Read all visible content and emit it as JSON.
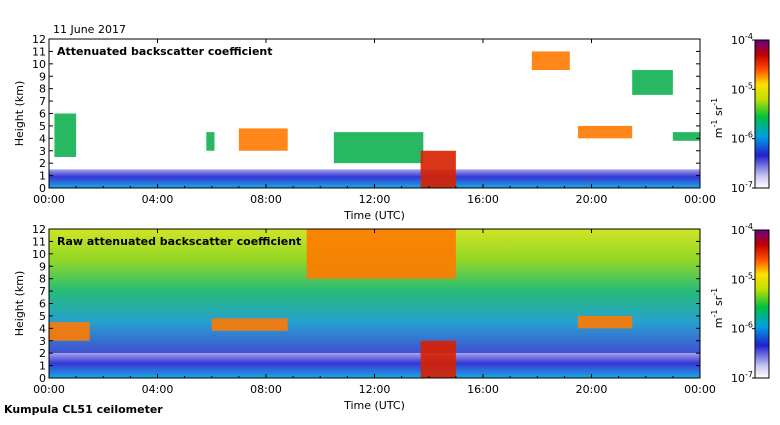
{
  "date_label": "11 June 2017",
  "footer_label": "Kumpula CL51 ceilometer",
  "chart_data": [
    {
      "type": "heatmap",
      "title": "Attenuated backscatter coefficient",
      "xlabel": "Time (UTC)",
      "ylabel": "Height (km)",
      "x_ticks": [
        "00:00",
        "04:00",
        "08:00",
        "12:00",
        "16:00",
        "20:00",
        "00:00"
      ],
      "x_range_hours": [
        0,
        24
      ],
      "y_ticks": [
        0,
        1,
        2,
        3,
        4,
        5,
        6,
        7,
        8,
        9,
        10,
        11,
        12
      ],
      "ylim": [
        0,
        12
      ],
      "colorbar": {
        "scale": "log",
        "range": [
          1e-07,
          0.0001
        ],
        "tick_labels": [
          "10",
          "10",
          "10",
          "10"
        ],
        "tick_exponents": [
          "-7",
          "-6",
          "-5",
          "-4"
        ],
        "unit_label": "m",
        "unit_exp1": "-1",
        "unit_sr": "sr",
        "unit_exp2": "-1"
      },
      "layers": [
        {
          "name": "boundary layer",
          "t_start": 0,
          "t_end": 24,
          "height_km": [
            0,
            1.5
          ],
          "level": "low"
        },
        {
          "name": "cloud",
          "t_start": 0.2,
          "t_end": 1.0,
          "height_km": [
            2.5,
            6.0
          ],
          "level": "medium"
        },
        {
          "name": "cloud",
          "t_start": 5.8,
          "t_end": 6.1,
          "height_km": [
            3.0,
            4.5
          ],
          "level": "medium"
        },
        {
          "name": "cloud",
          "t_start": 7.0,
          "t_end": 8.8,
          "height_km": [
            3.0,
            4.8
          ],
          "level": "high"
        },
        {
          "name": "cloud",
          "t_start": 10.5,
          "t_end": 13.8,
          "height_km": [
            2.0,
            4.5
          ],
          "level": "medium"
        },
        {
          "name": "precipitation",
          "t_start": 13.7,
          "t_end": 15.0,
          "height_km": [
            0,
            3.0
          ],
          "level": "very-high"
        },
        {
          "name": "cloud",
          "t_start": 17.8,
          "t_end": 19.2,
          "height_km": [
            9.5,
            11.0
          ],
          "level": "high"
        },
        {
          "name": "cloud",
          "t_start": 19.5,
          "t_end": 21.5,
          "height_km": [
            4.0,
            5.0
          ],
          "level": "high"
        },
        {
          "name": "cloud",
          "t_start": 21.5,
          "t_end": 23.0,
          "height_km": [
            7.5,
            9.5
          ],
          "level": "medium"
        },
        {
          "name": "cloud",
          "t_start": 23.0,
          "t_end": 24.0,
          "height_km": [
            3.8,
            4.5
          ],
          "level": "medium"
        }
      ]
    },
    {
      "type": "heatmap",
      "title": "Raw attenuated backscatter coefficient",
      "xlabel": "Time (UTC)",
      "ylabel": "Height (km)",
      "x_ticks": [
        "00:00",
        "04:00",
        "08:00",
        "12:00",
        "16:00",
        "20:00",
        "00:00"
      ],
      "x_range_hours": [
        0,
        24
      ],
      "y_ticks": [
        0,
        1,
        2,
        3,
        4,
        5,
        6,
        7,
        8,
        9,
        10,
        11,
        12
      ],
      "ylim": [
        0,
        12
      ],
      "colorbar": {
        "scale": "log",
        "range": [
          1e-07,
          0.0001
        ],
        "tick_labels": [
          "10",
          "10",
          "10",
          "10"
        ],
        "tick_exponents": [
          "-7",
          "-6",
          "-5",
          "-4"
        ],
        "unit_label": "m",
        "unit_exp1": "-1",
        "unit_sr": "sr",
        "unit_exp2": "-1"
      },
      "layers": [
        {
          "name": "noise background",
          "t_start": 0,
          "t_end": 24,
          "height_km": [
            2.0,
            12.0
          ],
          "level": "medium"
        },
        {
          "name": "boundary layer",
          "t_start": 0,
          "t_end": 24,
          "height_km": [
            0,
            2.0
          ],
          "level": "low"
        },
        {
          "name": "cloud",
          "t_start": 0,
          "t_end": 1.5,
          "height_km": [
            3.0,
            4.5
          ],
          "level": "high"
        },
        {
          "name": "cloud",
          "t_start": 6.0,
          "t_end": 8.8,
          "height_km": [
            3.8,
            4.8
          ],
          "level": "high"
        },
        {
          "name": "cloud",
          "t_start": 9.5,
          "t_end": 15.0,
          "height_km": [
            8.0,
            12.0
          ],
          "level": "high"
        },
        {
          "name": "precipitation",
          "t_start": 13.7,
          "t_end": 15.0,
          "height_km": [
            0,
            3.0
          ],
          "level": "very-high"
        },
        {
          "name": "cloud",
          "t_start": 19.5,
          "t_end": 21.5,
          "height_km": [
            4.0,
            5.0
          ],
          "level": "high"
        }
      ]
    }
  ]
}
